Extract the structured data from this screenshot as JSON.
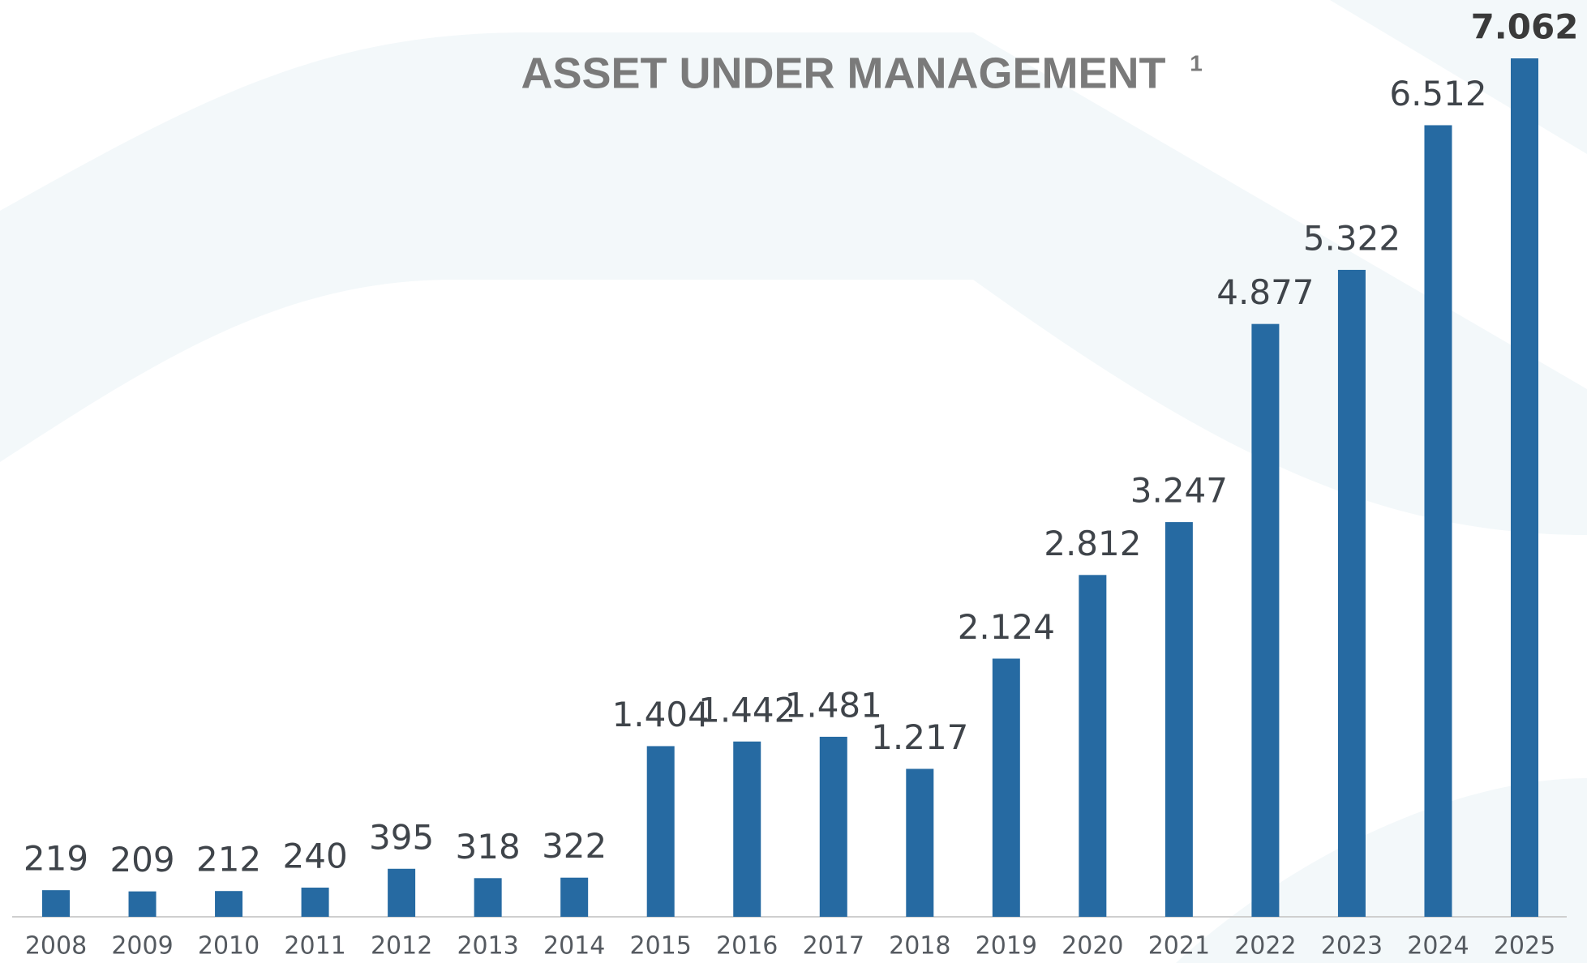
{
  "chart_data": {
    "type": "bar",
    "title": "ASSET UNDER MANAGEMENT",
    "title_superscript": "1",
    "categories": [
      "2008",
      "2009",
      "2010",
      "2011",
      "2012",
      "2013",
      "2014",
      "2015",
      "2016",
      "2017",
      "2018",
      "2019",
      "2020",
      "2021",
      "2022",
      "2023",
      "2024",
      "2025"
    ],
    "values": [
      219,
      209,
      212,
      240,
      395,
      318,
      322,
      1404,
      1442,
      1481,
      1217,
      2124,
      2812,
      3247,
      4877,
      5322,
      6512,
      7062
    ],
    "value_labels": [
      "219",
      "209",
      "212",
      "240",
      "395",
      "318",
      "322",
      "1.404",
      "1.442",
      "1.481",
      "1.217",
      "2.124",
      "2.812",
      "3.247",
      "4.877",
      "5.322",
      "6.512",
      "7.062"
    ],
    "color": "#266aa2"
  }
}
